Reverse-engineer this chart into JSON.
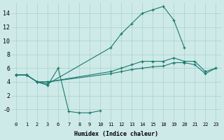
{
  "xlabel": "Humidex (Indice chaleur)",
  "background_color": "#ceeae8",
  "grid_color": "#aacfcc",
  "line_color": "#1a7a6e",
  "x_values": [
    0,
    1,
    2,
    3,
    6,
    7,
    8,
    9,
    10,
    11,
    12,
    13,
    14,
    15,
    18,
    19,
    20,
    21,
    22,
    23
  ],
  "x_tick_labels": [
    "0",
    "1",
    "2",
    "3",
    "6",
    "7",
    "8",
    "9",
    "10",
    "11",
    "12",
    "13",
    "14",
    "15",
    "18",
    "19",
    "20",
    "21",
    "22",
    "23"
  ],
  "ylim": [
    -1.8,
    15.5
  ],
  "ytick_vals": [
    0,
    2,
    4,
    6,
    8,
    10,
    12,
    14
  ],
  "ytick_labels": [
    "-0",
    "2",
    "4",
    "6",
    "8",
    "10",
    "12",
    "14"
  ],
  "series": [
    {
      "xi": [
        0,
        1,
        2,
        3,
        9,
        10,
        11,
        12,
        13,
        14,
        15,
        16
      ],
      "y": [
        5,
        5,
        4,
        3.7,
        9,
        11,
        12.5,
        14,
        14.5,
        15,
        13,
        9
      ]
    },
    {
      "xi": [
        0,
        1,
        2,
        3,
        9,
        10,
        11,
        12,
        13,
        14,
        15,
        16,
        17,
        18,
        19
      ],
      "y": [
        5,
        5,
        4,
        4,
        5.5,
        6,
        6.5,
        7,
        7,
        7,
        7.5,
        7,
        7,
        5.5,
        6
      ]
    },
    {
      "xi": [
        0,
        1,
        2,
        3,
        9,
        10,
        11,
        12,
        13,
        14,
        15,
        16,
        17,
        18,
        19
      ],
      "y": [
        5,
        5,
        4,
        4,
        5.2,
        5.5,
        5.8,
        6,
        6.2,
        6.3,
        6.8,
        6.8,
        6.5,
        5.2,
        6
      ]
    },
    {
      "xi": [
        0,
        1,
        2,
        3,
        4,
        5,
        6,
        7,
        8
      ],
      "y": [
        5,
        5,
        4,
        3.5,
        6,
        -0.3,
        -0.5,
        -0.5,
        -0.2
      ]
    }
  ]
}
